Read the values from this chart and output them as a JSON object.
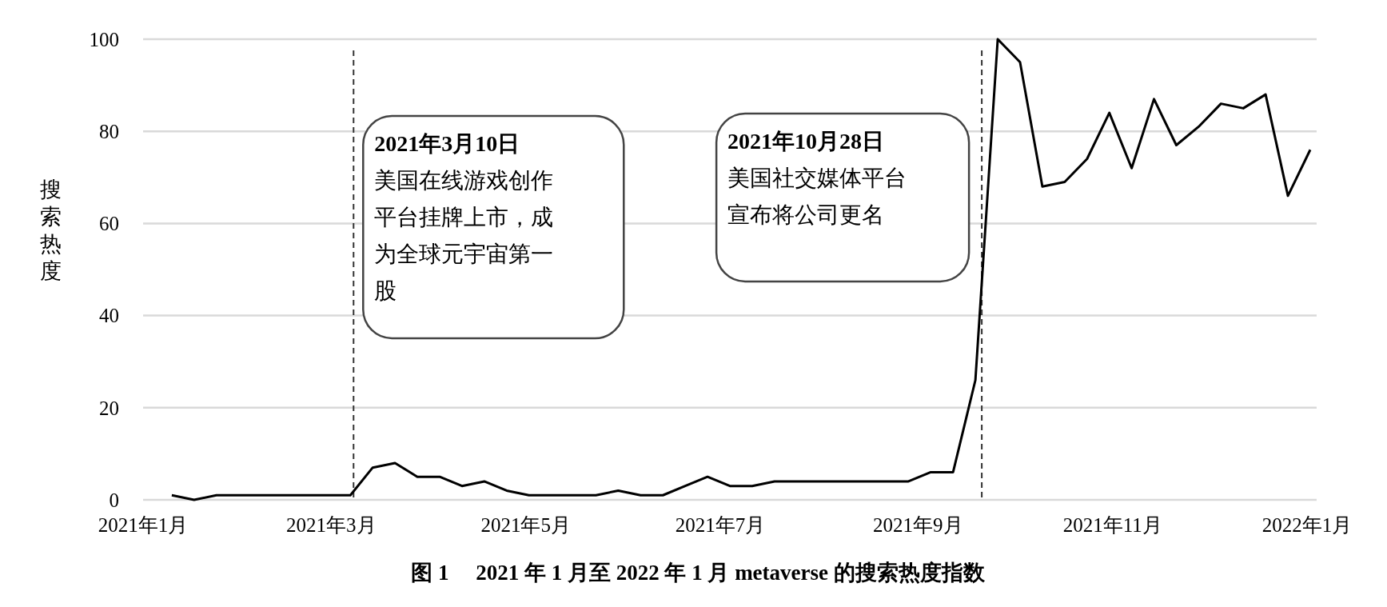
{
  "chart_data": {
    "type": "line",
    "title": "图 1　 2021 年 1 月至 2022 年 1 月 metaverse 的搜索热度指数",
    "ylabel": "搜索热度",
    "x": [
      "2021-01-10",
      "2021-01-17",
      "2021-01-24",
      "2021-01-31",
      "2021-02-07",
      "2021-02-14",
      "2021-02-21",
      "2021-02-28",
      "2021-03-07",
      "2021-03-14",
      "2021-03-21",
      "2021-03-28",
      "2021-04-04",
      "2021-04-11",
      "2021-04-18",
      "2021-04-25",
      "2021-05-02",
      "2021-05-09",
      "2021-05-16",
      "2021-05-23",
      "2021-05-30",
      "2021-06-06",
      "2021-06-13",
      "2021-06-20",
      "2021-06-27",
      "2021-07-04",
      "2021-07-11",
      "2021-07-18",
      "2021-07-25",
      "2021-08-01",
      "2021-08-08",
      "2021-08-15",
      "2021-08-22",
      "2021-08-29",
      "2021-09-05",
      "2021-09-12",
      "2021-09-19",
      "2021-09-26",
      "2021-10-03",
      "2021-10-10",
      "2021-10-17",
      "2021-10-24",
      "2021-10-31",
      "2021-11-07",
      "2021-11-14",
      "2021-11-21",
      "2021-11-28",
      "2021-12-05",
      "2021-12-12",
      "2021-12-19",
      "2021-12-26",
      "2022-01-02"
    ],
    "series": [
      {
        "color": "#000000",
        "values": [
          1,
          0,
          1,
          1,
          1,
          1,
          1,
          1,
          1,
          7,
          8,
          5,
          5,
          3,
          4,
          2,
          1,
          1,
          1,
          1,
          2,
          1,
          1,
          3,
          5,
          3,
          3,
          4,
          4,
          4,
          4,
          4,
          4,
          4,
          6,
          6,
          26,
          100,
          95,
          68,
          69,
          74,
          84,
          72,
          87,
          77,
          81,
          86,
          85,
          88,
          66,
          76
        ]
      }
    ],
    "xlim": [
      "2021-01-01",
      "2022-01-04"
    ],
    "xticks": [
      {
        "value": "2021-01-01",
        "label": "2021年1月"
      },
      {
        "value": "2021-03-01",
        "label": "2021年3月"
      },
      {
        "value": "2021-05-01",
        "label": "2021年5月"
      },
      {
        "value": "2021-07-01",
        "label": "2021年7月"
      },
      {
        "value": "2021-09-01",
        "label": "2021年9月"
      },
      {
        "value": "2021-11-01",
        "label": "2021年11月"
      },
      {
        "value": "2022-01-01",
        "label": "2022年1月"
      }
    ],
    "ylim": [
      0,
      100
    ],
    "yticks": [
      0,
      20,
      40,
      60,
      80,
      100
    ],
    "grid": "y",
    "line_style": "solid",
    "marker": "none",
    "ref_lines": [
      {
        "axis": "x",
        "value": "2021-03-08",
        "color": "#333333",
        "line_style": "dashed"
      },
      {
        "axis": "x",
        "value": "2021-09-21",
        "color": "#333333",
        "line_style": "dashed"
      }
    ],
    "annotations": [
      "2021年3月10日",
      "美国在线游戏创作平台挂牌上市，成为全球元宇宙第一股",
      "2021年10月28日",
      "美国社交媒体平台宣布将公司更名"
    ]
  }
}
